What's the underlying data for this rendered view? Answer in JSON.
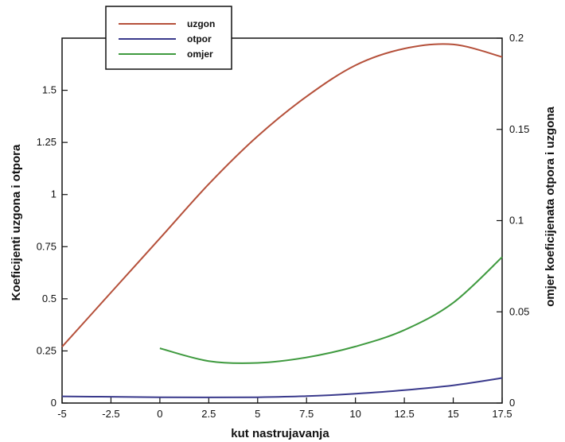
{
  "chart_data": {
    "type": "line",
    "xlabel": "kut nastrujavanja",
    "ylabel_left": "Koeficijenti uzgona i otpora",
    "ylabel_right": "omjer koeficijenata otpora i uzgona",
    "xlim": [
      -5,
      17.5
    ],
    "ylim_left": [
      0,
      1.75
    ],
    "ylim_right": [
      0,
      0.2
    ],
    "x_ticks": [
      "-5",
      "-2.5",
      "0",
      "2.5",
      "5",
      "7.5",
      "10",
      "12.5",
      "15",
      "17.5"
    ],
    "y_left_ticks": [
      "0",
      "0.25",
      "0.5",
      "0.75",
      "1",
      "1.25",
      "1.5"
    ],
    "y_right_ticks": [
      "0",
      "0.05",
      "0.1",
      "0.15",
      "0.2"
    ],
    "legend_position": "top-left",
    "grid": false,
    "series": [
      {
        "name": "uzgon",
        "axis": "left",
        "color": "#b5503a",
        "x": [
          -5,
          -2.5,
          0,
          2.5,
          5,
          7.5,
          10,
          12.5,
          15,
          17.5
        ],
        "y": [
          0.27,
          0.53,
          0.79,
          1.05,
          1.28,
          1.47,
          1.62,
          1.7,
          1.72,
          1.66
        ]
      },
      {
        "name": "otpor",
        "axis": "left",
        "color": "#3a3a8c",
        "x": [
          -5,
          -2.5,
          0,
          2.5,
          5,
          7.5,
          10,
          12.5,
          15,
          17.5
        ],
        "y": [
          0.032,
          0.03,
          0.028,
          0.027,
          0.028,
          0.033,
          0.045,
          0.062,
          0.085,
          0.12
        ]
      },
      {
        "name": "omjer",
        "axis": "right",
        "color": "#3f9a3f",
        "x": [
          0,
          2.5,
          5,
          7.5,
          10,
          12.5,
          15,
          17.5
        ],
        "y": [
          0.03,
          0.023,
          0.022,
          0.025,
          0.031,
          0.04,
          0.055,
          0.08
        ]
      }
    ]
  }
}
